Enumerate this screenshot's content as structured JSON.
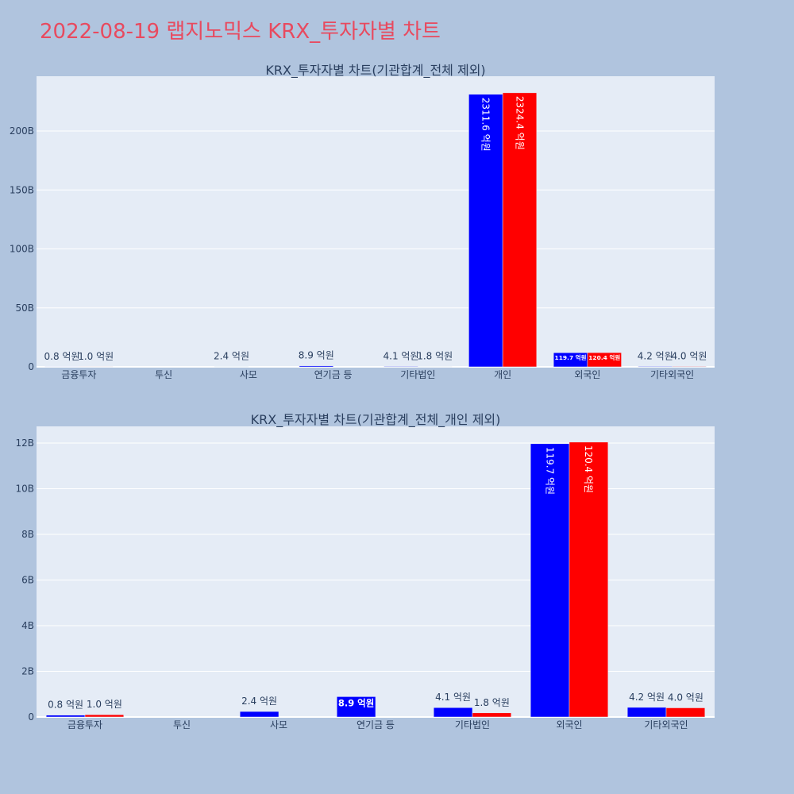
{
  "title": "2022-08-19 랩지노믹스 KRX_투자자별 차트",
  "colors": {
    "page_background": "#B0C4DE",
    "title": "#E84A5F",
    "plot_background": "#E5ECF6",
    "axis_text": "#2A3F5F",
    "gridline": "#FFFFFF",
    "bar_outline": "#E5ECF6",
    "inside_label": "#FFFFFF"
  },
  "chart_data": [
    {
      "type": "bar",
      "barmode": "group",
      "title": "KRX_투자자별 차트(기관합계_전체 제외)",
      "categories": [
        "금융투자",
        "투신",
        "사모",
        "연기금 등",
        "기타법인",
        "개인",
        "외국인",
        "기타외국인"
      ],
      "ylim": [
        0,
        246500000000
      ],
      "yticks": {
        "values": [
          0,
          50000000000,
          100000000000,
          150000000000,
          200000000000
        ],
        "labels": [
          "0",
          "50B",
          "100B",
          "150B",
          "200B"
        ]
      },
      "grid": true,
      "series": [
        {
          "color": "#0000FF",
          "values": [
            80000000,
            null,
            240000000,
            890000000,
            410000000,
            231160000000,
            11970000000,
            420000000
          ],
          "labels": [
            "0.8 억원",
            null,
            "2.4 억원",
            "8.9 억원",
            "4.1 억원",
            "2311.6 억원",
            "119.7 억원",
            "4.2 억원"
          ]
        },
        {
          "color": "#FF0000",
          "values": [
            100000000,
            null,
            null,
            null,
            180000000,
            232440000000,
            12040000000,
            400000000
          ],
          "labels": [
            "1.0 억원",
            null,
            null,
            null,
            "1.8 억원",
            "2324.4 억원",
            "120.4 억원",
            "4.0 억원"
          ]
        }
      ]
    },
    {
      "type": "bar",
      "barmode": "group",
      "title": "KRX_투자자별 차트(기관합계_전체_개인 제외)",
      "categories": [
        "금융투자",
        "투신",
        "사모",
        "연기금 등",
        "기타법인",
        "외국인",
        "기타외국인"
      ],
      "ylim": [
        0,
        12730000000
      ],
      "yticks": {
        "values": [
          0,
          2000000000,
          4000000000,
          6000000000,
          8000000000,
          10000000000,
          12000000000
        ],
        "labels": [
          "0",
          "2B",
          "4B",
          "6B",
          "8B",
          "10B",
          "12B"
        ]
      },
      "grid": true,
      "series": [
        {
          "color": "#0000FF",
          "values": [
            80000000,
            null,
            240000000,
            890000000,
            410000000,
            11970000000,
            420000000
          ],
          "labels": [
            "0.8 억원",
            null,
            "2.4 억원",
            "8.9 억원",
            "4.1 억원",
            "119.7 억원",
            "4.2 억원"
          ]
        },
        {
          "color": "#FF0000",
          "values": [
            100000000,
            null,
            null,
            null,
            180000000,
            12040000000,
            400000000
          ],
          "labels": [
            "1.0 억원",
            null,
            null,
            null,
            "1.8 억원",
            "120.4 억원",
            "4.0 억원"
          ]
        }
      ]
    }
  ]
}
